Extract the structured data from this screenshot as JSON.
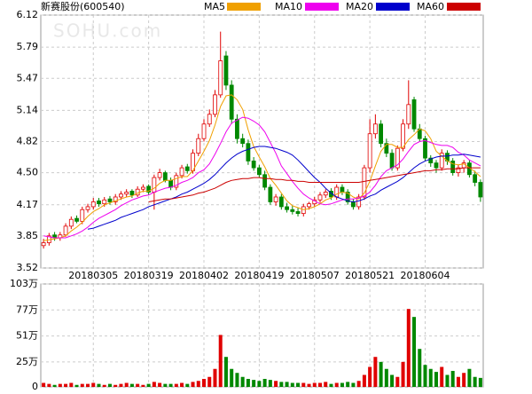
{
  "chart_data": [
    {
      "type": "candlestick",
      "title": "新赛股份(600540)",
      "watermark": "SOHU.com",
      "categories": [
        null,
        null,
        null,
        null,
        null,
        null,
        null,
        null,
        null,
        "20180305",
        null,
        null,
        null,
        null,
        null,
        null,
        null,
        null,
        null,
        "20180319",
        null,
        null,
        null,
        null,
        null,
        null,
        null,
        null,
        null,
        "20180402",
        null,
        null,
        null,
        null,
        null,
        null,
        null,
        null,
        null,
        "20180419",
        null,
        null,
        null,
        null,
        null,
        null,
        null,
        null,
        null,
        "20180507",
        null,
        null,
        null,
        null,
        null,
        null,
        null,
        null,
        null,
        "20180521",
        null,
        null,
        null,
        null,
        null,
        null,
        null,
        null,
        null,
        "20180604",
        null,
        null,
        null,
        null,
        null,
        null,
        null,
        null,
        null,
        null
      ],
      "open": [
        3.75,
        3.78,
        3.86,
        3.83,
        3.86,
        3.95,
        4.03,
        4.0,
        4.12,
        4.15,
        4.21,
        4.18,
        4.23,
        4.2,
        4.25,
        4.28,
        4.31,
        4.27,
        4.33,
        4.36,
        4.3,
        4.45,
        4.5,
        4.42,
        4.35,
        4.47,
        4.56,
        4.52,
        4.7,
        4.85,
        5.0,
        5.1,
        5.3,
        5.7,
        5.4,
        5.05,
        4.85,
        4.8,
        4.62,
        4.55,
        4.48,
        4.35,
        4.2,
        4.25,
        4.15,
        4.12,
        4.1,
        4.08,
        4.15,
        4.18,
        4.22,
        4.27,
        4.31,
        4.25,
        4.35,
        4.3,
        4.2,
        4.15,
        4.25,
        4.55,
        4.9,
        5.0,
        4.8,
        4.7,
        4.55,
        4.75,
        5.0,
        5.25,
        4.95,
        4.85,
        4.65,
        4.6,
        4.55,
        4.7,
        4.62,
        4.5,
        4.55,
        4.6,
        4.48,
        4.4
      ],
      "high": [
        3.82,
        3.88,
        3.89,
        3.89,
        3.98,
        4.05,
        4.06,
        4.15,
        4.18,
        4.24,
        4.24,
        4.25,
        4.26,
        4.28,
        4.31,
        4.33,
        4.33,
        4.36,
        4.38,
        4.38,
        4.48,
        4.54,
        4.52,
        4.45,
        4.5,
        4.58,
        4.59,
        4.74,
        4.9,
        5.05,
        5.15,
        5.35,
        5.95,
        5.75,
        5.45,
        5.1,
        4.9,
        4.84,
        4.66,
        4.58,
        4.52,
        4.38,
        4.28,
        4.28,
        4.19,
        4.16,
        4.14,
        4.18,
        4.2,
        4.25,
        4.3,
        4.33,
        4.34,
        4.38,
        4.38,
        4.33,
        4.23,
        4.28,
        4.58,
        5.05,
        5.1,
        5.04,
        4.85,
        4.74,
        4.78,
        5.05,
        5.45,
        5.28,
        5.0,
        4.88,
        4.68,
        4.63,
        4.74,
        4.73,
        4.65,
        4.58,
        4.63,
        4.63,
        4.52,
        4.43
      ],
      "low": [
        3.72,
        3.75,
        3.8,
        3.8,
        3.84,
        3.92,
        3.98,
        3.97,
        4.09,
        4.12,
        4.15,
        4.15,
        4.17,
        4.17,
        4.22,
        4.25,
        4.24,
        4.25,
        4.3,
        4.27,
        4.12,
        4.42,
        4.4,
        4.32,
        4.32,
        4.44,
        4.49,
        4.49,
        4.67,
        4.82,
        4.97,
        5.07,
        5.27,
        5.35,
        5.0,
        4.8,
        4.76,
        4.58,
        4.52,
        4.45,
        4.32,
        4.17,
        4.16,
        4.12,
        4.09,
        4.07,
        4.05,
        4.05,
        4.12,
        4.15,
        4.19,
        4.24,
        4.22,
        4.22,
        4.27,
        4.17,
        4.12,
        4.12,
        4.22,
        4.5,
        4.85,
        4.76,
        4.66,
        4.52,
        4.52,
        4.72,
        4.95,
        4.92,
        4.82,
        4.62,
        4.56,
        4.5,
        4.52,
        4.58,
        4.47,
        4.46,
        4.5,
        4.45,
        4.36,
        4.2
      ],
      "close": [
        3.78,
        3.85,
        3.83,
        3.86,
        3.95,
        4.02,
        4.0,
        4.12,
        4.15,
        4.2,
        4.18,
        4.22,
        4.2,
        4.25,
        4.28,
        4.3,
        4.27,
        4.33,
        4.35,
        4.3,
        4.45,
        4.5,
        4.42,
        4.35,
        4.47,
        4.55,
        4.52,
        4.7,
        4.85,
        5.0,
        5.1,
        5.3,
        5.65,
        5.4,
        5.05,
        4.85,
        4.8,
        4.62,
        4.55,
        4.48,
        4.35,
        4.2,
        4.25,
        4.15,
        4.12,
        4.1,
        4.08,
        4.15,
        4.18,
        4.22,
        4.27,
        4.3,
        4.25,
        4.35,
        4.3,
        4.2,
        4.15,
        4.25,
        4.55,
        4.9,
        5.0,
        4.8,
        4.7,
        4.55,
        4.75,
        5.0,
        5.2,
        4.95,
        4.85,
        4.65,
        4.6,
        4.55,
        4.7,
        4.62,
        4.5,
        4.55,
        4.6,
        4.48,
        4.4,
        4.25
      ],
      "up_color": "#e00000",
      "down_color": "#008800",
      "series": [
        {
          "name": "MA5",
          "color": "#f0a000",
          "values": [
            3.8,
            3.81,
            3.82,
            3.83,
            3.85,
            3.9,
            3.94,
            3.99,
            4.05,
            4.1,
            4.13,
            4.17,
            4.19,
            4.21,
            4.23,
            4.25,
            4.26,
            4.29,
            4.31,
            4.31,
            4.34,
            4.39,
            4.42,
            4.42,
            4.44,
            4.46,
            4.46,
            4.52,
            4.62,
            4.72,
            4.83,
            4.99,
            5.18,
            5.29,
            5.3,
            5.25,
            5.15,
            4.94,
            4.77,
            4.66,
            4.56,
            4.44,
            4.37,
            4.29,
            4.21,
            4.16,
            4.14,
            4.12,
            4.13,
            4.15,
            4.18,
            4.22,
            4.24,
            4.28,
            4.3,
            4.29,
            4.25,
            4.23,
            4.29,
            4.41,
            4.57,
            4.72,
            4.79,
            4.79,
            4.76,
            4.76,
            4.84,
            4.89,
            4.95,
            4.93,
            4.85,
            4.72,
            4.67,
            4.62,
            4.59,
            4.58,
            4.59,
            4.55,
            4.51,
            4.46
          ]
        },
        {
          "name": "MA10",
          "color": "#ee00ee",
          "values": [
            3.85,
            3.84,
            3.83,
            3.83,
            3.83,
            3.85,
            3.87,
            3.9,
            3.94,
            3.99,
            4.03,
            4.06,
            4.09,
            4.12,
            4.16,
            4.19,
            4.22,
            4.24,
            4.26,
            4.27,
            4.3,
            4.32,
            4.34,
            4.35,
            4.37,
            4.4,
            4.42,
            4.45,
            4.5,
            4.53,
            4.59,
            4.69,
            4.8,
            4.92,
            5.01,
            5.04,
            5.07,
            5.06,
            5.03,
            4.99,
            4.92,
            4.81,
            4.7,
            4.57,
            4.49,
            4.41,
            4.34,
            4.28,
            4.24,
            4.21,
            4.18,
            4.17,
            4.18,
            4.2,
            4.22,
            4.23,
            4.23,
            4.24,
            4.26,
            4.3,
            4.37,
            4.46,
            4.52,
            4.55,
            4.58,
            4.64,
            4.72,
            4.79,
            4.82,
            4.83,
            4.81,
            4.79,
            4.78,
            4.78,
            4.76,
            4.71,
            4.68,
            4.63,
            4.6,
            4.57
          ]
        },
        {
          "name": "MA20",
          "color": "#0000cc",
          "values": [
            null,
            null,
            null,
            null,
            null,
            null,
            null,
            null,
            3.92,
            3.93,
            3.95,
            3.97,
            3.99,
            4.01,
            4.04,
            4.06,
            4.08,
            4.1,
            4.12,
            4.15,
            4.17,
            4.19,
            4.21,
            4.23,
            4.25,
            4.28,
            4.3,
            4.33,
            4.36,
            4.39,
            4.43,
            4.48,
            4.54,
            4.6,
            4.65,
            4.69,
            4.72,
            4.74,
            4.76,
            4.77,
            4.77,
            4.76,
            4.75,
            4.73,
            4.71,
            4.68,
            4.63,
            4.57,
            4.51,
            4.45,
            4.4,
            4.34,
            4.29,
            4.25,
            4.23,
            4.21,
            4.2,
            4.21,
            4.23,
            4.26,
            4.28,
            4.32,
            4.35,
            4.38,
            4.41,
            4.45,
            4.5,
            4.55,
            4.59,
            4.62,
            4.64,
            4.66,
            4.67,
            4.67,
            4.68,
            4.68,
            4.69,
            4.68,
            4.67,
            4.66
          ]
        },
        {
          "name": "MA60",
          "color": "#cc0000",
          "values": [
            null,
            null,
            null,
            null,
            null,
            null,
            null,
            null,
            null,
            null,
            null,
            null,
            null,
            null,
            null,
            null,
            null,
            null,
            null,
            4.2,
            4.21,
            4.22,
            4.23,
            4.23,
            4.24,
            4.25,
            4.26,
            4.27,
            4.29,
            4.3,
            4.32,
            4.34,
            4.37,
            4.4,
            4.42,
            4.43,
            4.44,
            4.44,
            4.45,
            4.45,
            4.44,
            4.44,
            4.43,
            4.43,
            4.42,
            4.42,
            4.41,
            4.41,
            4.4,
            4.4,
            4.4,
            4.4,
            4.4,
            4.4,
            4.4,
            4.4,
            4.4,
            4.4,
            4.41,
            4.42,
            4.43,
            4.44,
            4.45,
            4.46,
            4.47,
            4.48,
            4.49,
            4.5,
            4.51,
            4.52,
            4.52,
            4.53,
            4.53,
            4.54,
            4.54,
            4.54,
            4.55,
            4.55,
            4.55,
            4.55
          ]
        }
      ],
      "ylim": [
        3.52,
        6.12
      ],
      "yticks": [
        3.52,
        3.85,
        4.17,
        {
          "value": 4.5,
          "label": "4.50"
        },
        4.82,
        5.14,
        5.47,
        5.79,
        6.12
      ],
      "grid": true
    },
    {
      "type": "bar",
      "values": [
        4,
        3,
        2,
        3,
        3,
        4,
        2,
        3,
        3,
        4,
        3,
        2,
        3,
        2,
        3,
        4,
        3,
        3,
        2,
        3,
        5,
        4,
        3,
        3,
        3,
        4,
        3,
        5,
        6,
        8,
        10,
        18,
        52,
        30,
        18,
        14,
        10,
        8,
        7,
        6,
        8,
        7,
        6,
        5,
        5,
        4,
        4,
        4,
        3,
        4,
        4,
        5,
        3,
        4,
        4,
        5,
        4,
        6,
        12,
        20,
        30,
        25,
        18,
        12,
        10,
        25,
        78,
        70,
        38,
        22,
        18,
        15,
        20,
        12,
        16,
        10,
        14,
        18,
        10,
        9
      ],
      "ylim": [
        0,
        103
      ],
      "yticks": [
        0,
        {
          "value": 25,
          "label": "25万"
        },
        {
          "value": 51,
          "label": "51万"
        },
        {
          "value": 77,
          "label": "77万"
        },
        {
          "value": 103,
          "label": "103万"
        }
      ],
      "grid": true
    }
  ]
}
